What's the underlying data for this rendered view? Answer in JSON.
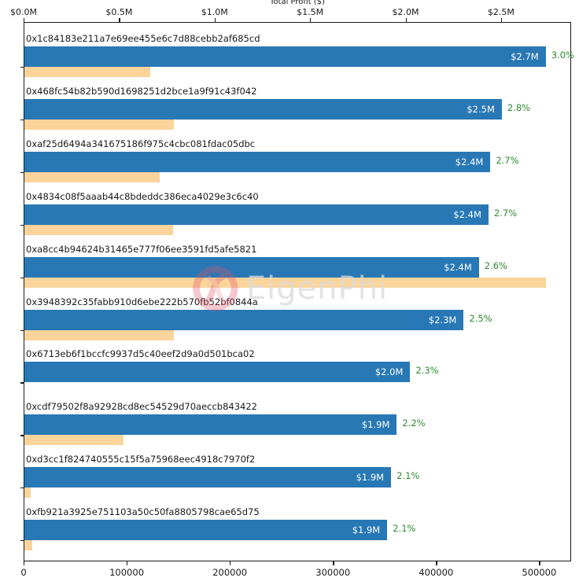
{
  "chart_data": {
    "type": "bar",
    "orientation": "horizontal-grouped",
    "title": "Total Profit ($)",
    "watermark": "EigenPhi",
    "legend": "none",
    "grid": false,
    "top_axis": {
      "label": "Total Profit ($)",
      "ticks": [
        {
          "label": "$0.0M",
          "value": 0
        },
        {
          "label": "$0.5M",
          "value": 0.5
        },
        {
          "label": "$1.0M",
          "value": 1.0
        },
        {
          "label": "$1.5M",
          "value": 1.5
        },
        {
          "label": "$2.0M",
          "value": 2.0
        },
        {
          "label": "$2.5M",
          "value": 2.5
        }
      ],
      "max": 2.867
    },
    "bottom_axis": {
      "ticks": [
        {
          "label": "0",
          "value": 0
        },
        {
          "label": "100000",
          "value": 100000
        },
        {
          "label": "200000",
          "value": 200000
        },
        {
          "label": "300000",
          "value": 300000
        },
        {
          "label": "400000",
          "value": 400000
        },
        {
          "label": "500000",
          "value": 500000
        }
      ],
      "max": 531000
    },
    "rows": [
      {
        "address": "0x1c84183e211a7e69ee455e6c7d88cebb2af685cd",
        "profit_m": 2.73,
        "profit_label": "$2.7M",
        "percent_label": "3.0%",
        "count": 122000
      },
      {
        "address": "0x468fc54b82b590d1698251d2bce1a9f91c43f042",
        "profit_m": 2.5,
        "profit_label": "$2.5M",
        "percent_label": "2.8%",
        "count": 145000
      },
      {
        "address": "0xaf25d6494a341675186f975c4cbc081fdac05dbc",
        "profit_m": 2.44,
        "profit_label": "$2.4M",
        "percent_label": "2.7%",
        "count": 131000
      },
      {
        "address": "0x4834c08f5aaab44c8bdeddc386eca4029e3c6c40",
        "profit_m": 2.43,
        "profit_label": "$2.4M",
        "percent_label": "2.7%",
        "count": 144000
      },
      {
        "address": "0xa8cc4b94624b31465e777f06ee3591fd5afe5821",
        "profit_m": 2.38,
        "profit_label": "$2.4M",
        "percent_label": "2.6%",
        "count": 506000
      },
      {
        "address": "0x3948392c35fabb910d6ebe222b570fb52bf0844a",
        "profit_m": 2.3,
        "profit_label": "$2.3M",
        "percent_label": "2.5%",
        "count": 145000
      },
      {
        "address": "0x6713eb6f1bccfc9937d5c40eef2d9a0d501bca02",
        "profit_m": 2.02,
        "profit_label": "$2.0M",
        "percent_label": "2.3%",
        "count": 0
      },
      {
        "address": "0xcdf79502f8a92928cd8ec54529d70aeccb843422",
        "profit_m": 1.95,
        "profit_label": "$1.9M",
        "percent_label": "2.2%",
        "count": 96000
      },
      {
        "address": "0xd3cc1f824740555c15f5a75968eec4918c7970f2",
        "profit_m": 1.92,
        "profit_label": "$1.9M",
        "percent_label": "2.1%",
        "count": 6000
      },
      {
        "address": "0xfb921a3925e751103a50c50fa8805798cae65d75",
        "profit_m": 1.9,
        "profit_label": "$1.9M",
        "percent_label": "2.1%",
        "count": 8000
      }
    ],
    "colors": {
      "profit_bar": "#2878b5",
      "count_bar": "#fad49b",
      "percent_text": "#2e8b2e",
      "profit_text": "#ffffff",
      "axis_text": "#1a1a1a",
      "watermark_text": "#dadada",
      "watermark_logo": "#e25568"
    }
  }
}
